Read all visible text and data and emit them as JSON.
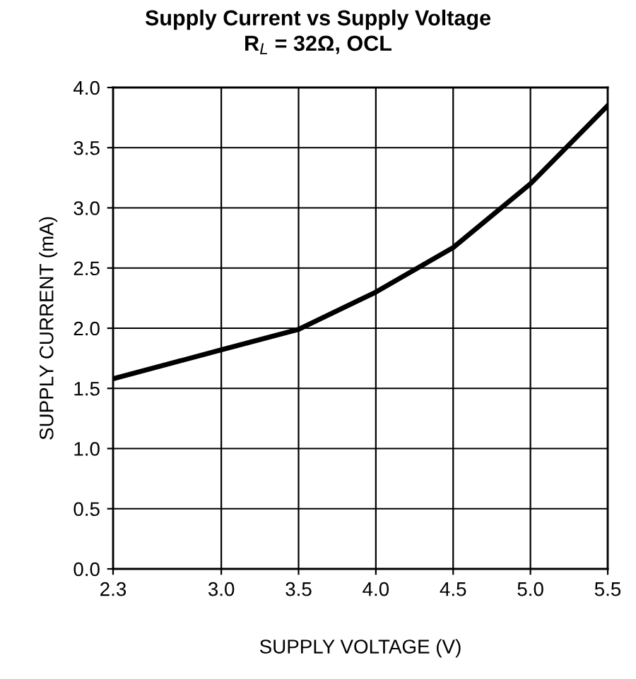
{
  "chart_data": {
    "type": "line",
    "title": "Supply Current vs Supply Voltage",
    "subtitle": "R$_{L}$ = 32Ω, OCL",
    "xlabel": "SUPPLY VOLTAGE (V)",
    "ylabel": "SUPPLY CURRENT (mA)",
    "x": [
      2.3,
      3.0,
      3.5,
      4.0,
      4.5,
      5.0,
      5.5
    ],
    "series": [
      {
        "color": "#000000",
        "values": [
          1.58,
          1.82,
          1.99,
          2.3,
          2.67,
          3.2,
          3.85
        ]
      }
    ],
    "xlim": [
      2.3,
      5.5
    ],
    "xticks": [
      2.3,
      {
        "value": 3,
        "label": "3.0"
      },
      3.5,
      {
        "value": 4,
        "label": "4.0"
      },
      4.5,
      {
        "value": 5,
        "label": "5.0"
      },
      5.5
    ],
    "ylim": [
      0,
      4
    ],
    "yticks": [
      {
        "value": 0,
        "label": "0.0"
      },
      {
        "value": 0.5,
        "label": "0.5"
      },
      {
        "value": 1,
        "label": "1.0"
      },
      {
        "value": 1.5,
        "label": "1.5"
      },
      {
        "value": 2,
        "label": "2.0"
      },
      {
        "value": 2.5,
        "label": "2.5"
      },
      {
        "value": 3,
        "label": "3.0"
      },
      {
        "value": 3.5,
        "label": "3.5"
      },
      {
        "value": 4,
        "label": "4.0"
      }
    ],
    "grid": true,
    "marker": "none",
    "line_style": "solid"
  }
}
